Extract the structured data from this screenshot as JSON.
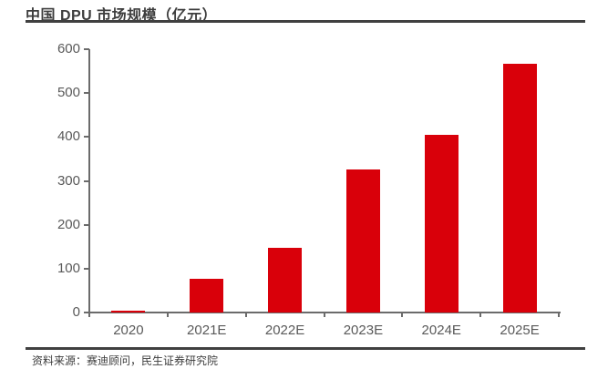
{
  "page": {
    "title": "中国 DPU 市场规模（亿元）",
    "source": "资料来源：赛迪顾问，民生证券研究院"
  },
  "chart_data": {
    "type": "bar",
    "title": "中国 DPU 市场规模（亿元）",
    "categories": [
      "2020",
      "2021E",
      "2022E",
      "2023E",
      "2024E",
      "2025E"
    ],
    "values": [
      4,
      76,
      148,
      325,
      405,
      566
    ],
    "xlabel": "",
    "ylabel": "",
    "ylim": [
      0,
      600
    ],
    "yticks": [
      0,
      100,
      200,
      300,
      400,
      500,
      600
    ],
    "grid": false,
    "legend_position": "none",
    "bar_color": "#d9000a",
    "axis_color": "#6b6b6b",
    "tick_label_color": "#595959",
    "source": "资料来源：赛迪顾问，民生证券研究院"
  }
}
